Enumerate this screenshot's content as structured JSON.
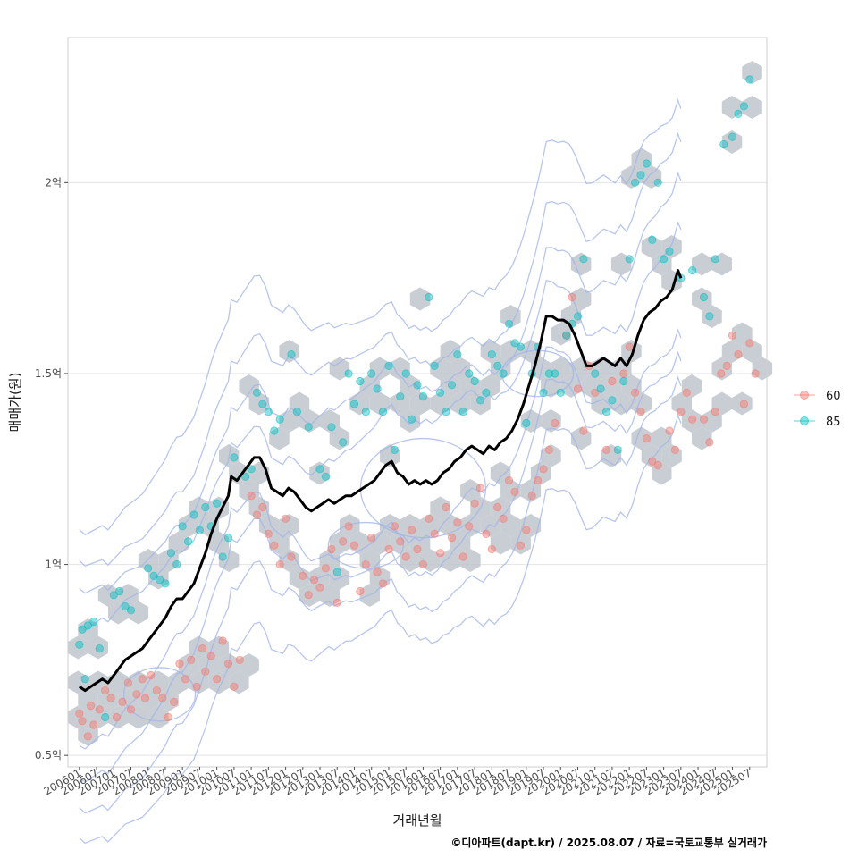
{
  "chart_data": {
    "type": "scatter",
    "title": "",
    "xlabel": "거래년월",
    "ylabel": "매매가(원)",
    "caption": "©디아파트(dapt.kr) / 2025.08.07 / 자료=국토교통부 실거래가",
    "x_ticks": [
      "200601",
      "200607",
      "200701",
      "200707",
      "200801",
      "200807",
      "200901",
      "200907",
      "201001",
      "201007",
      "201101",
      "201107",
      "201201",
      "201207",
      "201301",
      "201307",
      "201401",
      "201407",
      "201501",
      "201507",
      "201601",
      "201607",
      "201701",
      "201707",
      "201801",
      "201807",
      "201901",
      "201907",
      "202001",
      "202007",
      "202101",
      "202107",
      "202201",
      "202207",
      "202301",
      "202307",
      "202401",
      "202407",
      "202501",
      "202507"
    ],
    "x_range_months": [
      -4,
      240
    ],
    "y_range": [
      0.47,
      2.38
    ],
    "y_ticks": [
      {
        "value": 0.5,
        "label": "0.5억"
      },
      {
        "value": 1.0,
        "label": "1억"
      },
      {
        "value": 1.5,
        "label": "1.5억"
      },
      {
        "value": 2.0,
        "label": "2억"
      }
    ],
    "grid": true,
    "legend_position": "right",
    "series": [
      {
        "name": "60",
        "color": "#F8766D",
        "points": [
          [
            0,
            0.61
          ],
          [
            1,
            0.59
          ],
          [
            3,
            0.55
          ],
          [
            4,
            0.63
          ],
          [
            5,
            0.58
          ],
          [
            7,
            0.62
          ],
          [
            9,
            0.67
          ],
          [
            11,
            0.65
          ],
          [
            13,
            0.6
          ],
          [
            15,
            0.64
          ],
          [
            17,
            0.69
          ],
          [
            18,
            0.62
          ],
          [
            20,
            0.66
          ],
          [
            22,
            0.7
          ],
          [
            23,
            0.65
          ],
          [
            25,
            0.71
          ],
          [
            27,
            0.67
          ],
          [
            29,
            0.65
          ],
          [
            31,
            0.6
          ],
          [
            33,
            0.64
          ],
          [
            35,
            0.74
          ],
          [
            37,
            0.7
          ],
          [
            39,
            0.75
          ],
          [
            41,
            0.68
          ],
          [
            43,
            0.78
          ],
          [
            44,
            0.72
          ],
          [
            46,
            0.76
          ],
          [
            48,
            0.7
          ],
          [
            50,
            0.8
          ],
          [
            52,
            0.74
          ],
          [
            54,
            0.68
          ],
          [
            56,
            0.75
          ],
          [
            60,
            1.18
          ],
          [
            62,
            1.13
          ],
          [
            64,
            1.15
          ],
          [
            66,
            1.08
          ],
          [
            68,
            1.05
          ],
          [
            70,
            1.0
          ],
          [
            72,
            1.12
          ],
          [
            74,
            1.02
          ],
          [
            78,
            0.97
          ],
          [
            80,
            0.92
          ],
          [
            82,
            0.96
          ],
          [
            84,
            0.94
          ],
          [
            86,
            0.99
          ],
          [
            88,
            1.04
          ],
          [
            90,
            0.9
          ],
          [
            92,
            1.06
          ],
          [
            94,
            1.1
          ],
          [
            96,
            1.05
          ],
          [
            98,
            0.93
          ],
          [
            100,
            1.0
          ],
          [
            102,
            1.07
          ],
          [
            104,
            0.98
          ],
          [
            106,
            0.95
          ],
          [
            108,
            1.04
          ],
          [
            110,
            1.1
          ],
          [
            112,
            1.06
          ],
          [
            114,
            1.02
          ],
          [
            116,
            1.09
          ],
          [
            118,
            1.04
          ],
          [
            120,
            1.0
          ],
          [
            122,
            1.12
          ],
          [
            124,
            1.08
          ],
          [
            126,
            1.03
          ],
          [
            128,
            1.15
          ],
          [
            130,
            1.07
          ],
          [
            132,
            1.11
          ],
          [
            134,
            1.02
          ],
          [
            136,
            1.1
          ],
          [
            138,
            1.16
          ],
          [
            140,
            1.2
          ],
          [
            142,
            1.08
          ],
          [
            144,
            1.04
          ],
          [
            146,
            1.15
          ],
          [
            148,
            1.12
          ],
          [
            150,
            1.22
          ],
          [
            152,
            1.19
          ],
          [
            154,
            1.05
          ],
          [
            156,
            1.09
          ],
          [
            158,
            1.18
          ],
          [
            160,
            1.22
          ],
          [
            162,
            1.25
          ],
          [
            164,
            1.3
          ],
          [
            166,
            1.37
          ],
          [
            170,
            1.6
          ],
          [
            172,
            1.7
          ],
          [
            174,
            1.46
          ],
          [
            176,
            1.35
          ],
          [
            178,
            1.52
          ],
          [
            180,
            1.45
          ],
          [
            184,
            1.3
          ],
          [
            186,
            1.48
          ],
          [
            190,
            1.5
          ],
          [
            192,
            1.57
          ],
          [
            194,
            1.45
          ],
          [
            196,
            1.4
          ],
          [
            198,
            1.33
          ],
          [
            200,
            1.27
          ],
          [
            202,
            1.26
          ],
          [
            206,
            1.35
          ],
          [
            208,
            1.3
          ],
          [
            210,
            1.4
          ],
          [
            212,
            1.45
          ],
          [
            214,
            1.38
          ],
          [
            218,
            1.38
          ],
          [
            220,
            1.32
          ],
          [
            222,
            1.4
          ],
          [
            224,
            1.5
          ],
          [
            226,
            1.52
          ],
          [
            228,
            1.6
          ],
          [
            230,
            1.55
          ],
          [
            232,
            1.42
          ],
          [
            234,
            1.58
          ],
          [
            236,
            1.5
          ]
        ]
      },
      {
        "name": "85",
        "color": "#00BFC4",
        "points": [
          [
            0,
            0.79
          ],
          [
            1,
            0.83
          ],
          [
            2,
            0.7
          ],
          [
            3,
            0.84
          ],
          [
            5,
            0.85
          ],
          [
            7,
            0.78
          ],
          [
            9,
            0.6
          ],
          [
            12,
            0.92
          ],
          [
            14,
            0.93
          ],
          [
            16,
            0.89
          ],
          [
            18,
            0.88
          ],
          [
            24,
            0.99
          ],
          [
            26,
            0.97
          ],
          [
            28,
            0.96
          ],
          [
            30,
            0.95
          ],
          [
            32,
            1.03
          ],
          [
            34,
            1.0
          ],
          [
            36,
            1.1
          ],
          [
            38,
            1.06
          ],
          [
            40,
            1.13
          ],
          [
            42,
            1.09
          ],
          [
            44,
            1.15
          ],
          [
            46,
            1.1
          ],
          [
            48,
            1.16
          ],
          [
            50,
            1.02
          ],
          [
            52,
            1.07
          ],
          [
            54,
            1.28
          ],
          [
            58,
            1.23
          ],
          [
            60,
            1.25
          ],
          [
            62,
            1.45
          ],
          [
            64,
            1.42
          ],
          [
            66,
            1.4
          ],
          [
            68,
            1.35
          ],
          [
            70,
            1.38
          ],
          [
            74,
            1.55
          ],
          [
            76,
            1.4
          ],
          [
            80,
            1.36
          ],
          [
            84,
            1.25
          ],
          [
            86,
            1.23
          ],
          [
            88,
            1.36
          ],
          [
            90,
            0.98
          ],
          [
            92,
            1.32
          ],
          [
            94,
            1.5
          ],
          [
            96,
            1.42
          ],
          [
            98,
            1.48
          ],
          [
            100,
            1.4
          ],
          [
            102,
            1.5
          ],
          [
            104,
            1.46
          ],
          [
            106,
            1.4
          ],
          [
            108,
            1.52
          ],
          [
            110,
            1.3
          ],
          [
            112,
            1.44
          ],
          [
            114,
            1.5
          ],
          [
            116,
            1.38
          ],
          [
            118,
            1.47
          ],
          [
            120,
            1.44
          ],
          [
            122,
            1.7
          ],
          [
            124,
            1.52
          ],
          [
            126,
            1.45
          ],
          [
            128,
            1.4
          ],
          [
            130,
            1.47
          ],
          [
            132,
            1.55
          ],
          [
            134,
            1.4
          ],
          [
            136,
            1.5
          ],
          [
            138,
            1.48
          ],
          [
            140,
            1.43
          ],
          [
            142,
            1.45
          ],
          [
            144,
            1.55
          ],
          [
            146,
            1.52
          ],
          [
            148,
            1.5
          ],
          [
            150,
            1.63
          ],
          [
            152,
            1.58
          ],
          [
            154,
            1.57
          ],
          [
            156,
            1.37
          ],
          [
            158,
            1.5
          ],
          [
            160,
            1.57
          ],
          [
            162,
            1.45
          ],
          [
            164,
            1.5
          ],
          [
            166,
            1.5
          ],
          [
            168,
            1.45
          ],
          [
            170,
            1.6
          ],
          [
            172,
            1.63
          ],
          [
            174,
            1.65
          ],
          [
            176,
            1.8
          ],
          [
            180,
            1.5
          ],
          [
            182,
            1.46
          ],
          [
            184,
            1.4
          ],
          [
            186,
            1.43
          ],
          [
            188,
            1.3
          ],
          [
            190,
            1.48
          ],
          [
            192,
            1.8
          ],
          [
            194,
            2.0
          ],
          [
            196,
            2.02
          ],
          [
            198,
            2.05
          ],
          [
            200,
            1.85
          ],
          [
            202,
            2.0
          ],
          [
            204,
            1.8
          ],
          [
            206,
            1.82
          ],
          [
            210,
            1.75
          ],
          [
            214,
            1.77
          ],
          [
            218,
            1.7
          ],
          [
            220,
            1.65
          ],
          [
            222,
            1.8
          ],
          [
            225,
            2.1
          ],
          [
            228,
            2.12
          ],
          [
            230,
            2.18
          ],
          [
            232,
            2.2
          ],
          [
            234,
            2.27
          ]
        ]
      }
    ],
    "trend_line": {
      "color": "#000000",
      "points": [
        [
          0,
          0.68
        ],
        [
          2,
          0.67
        ],
        [
          4,
          0.68
        ],
        [
          6,
          0.69
        ],
        [
          8,
          0.7
        ],
        [
          10,
          0.69
        ],
        [
          12,
          0.71
        ],
        [
          14,
          0.73
        ],
        [
          16,
          0.75
        ],
        [
          18,
          0.76
        ],
        [
          20,
          0.77
        ],
        [
          22,
          0.78
        ],
        [
          24,
          0.8
        ],
        [
          26,
          0.82
        ],
        [
          28,
          0.84
        ],
        [
          30,
          0.86
        ],
        [
          32,
          0.89
        ],
        [
          34,
          0.91
        ],
        [
          36,
          0.91
        ],
        [
          38,
          0.93
        ],
        [
          40,
          0.95
        ],
        [
          42,
          0.99
        ],
        [
          44,
          1.03
        ],
        [
          46,
          1.08
        ],
        [
          48,
          1.12
        ],
        [
          50,
          1.15
        ],
        [
          52,
          1.18
        ],
        [
          53,
          1.23
        ],
        [
          55,
          1.22
        ],
        [
          57,
          1.24
        ],
        [
          59,
          1.26
        ],
        [
          61,
          1.28
        ],
        [
          63,
          1.28
        ],
        [
          65,
          1.25
        ],
        [
          67,
          1.2
        ],
        [
          69,
          1.19
        ],
        [
          71,
          1.18
        ],
        [
          73,
          1.2
        ],
        [
          75,
          1.19
        ],
        [
          77,
          1.17
        ],
        [
          79,
          1.15
        ],
        [
          81,
          1.14
        ],
        [
          83,
          1.15
        ],
        [
          85,
          1.16
        ],
        [
          87,
          1.17
        ],
        [
          89,
          1.16
        ],
        [
          91,
          1.17
        ],
        [
          93,
          1.18
        ],
        [
          95,
          1.18
        ],
        [
          97,
          1.19
        ],
        [
          99,
          1.2
        ],
        [
          101,
          1.21
        ],
        [
          103,
          1.22
        ],
        [
          105,
          1.24
        ],
        [
          107,
          1.26
        ],
        [
          109,
          1.27
        ],
        [
          111,
          1.24
        ],
        [
          113,
          1.23
        ],
        [
          115,
          1.21
        ],
        [
          117,
          1.22
        ],
        [
          119,
          1.21
        ],
        [
          121,
          1.22
        ],
        [
          123,
          1.21
        ],
        [
          125,
          1.22
        ],
        [
          127,
          1.24
        ],
        [
          129,
          1.25
        ],
        [
          131,
          1.27
        ],
        [
          133,
          1.28
        ],
        [
          135,
          1.3
        ],
        [
          137,
          1.31
        ],
        [
          139,
          1.3
        ],
        [
          141,
          1.29
        ],
        [
          143,
          1.31
        ],
        [
          145,
          1.3
        ],
        [
          147,
          1.32
        ],
        [
          149,
          1.33
        ],
        [
          151,
          1.35
        ],
        [
          153,
          1.38
        ],
        [
          155,
          1.42
        ],
        [
          157,
          1.47
        ],
        [
          159,
          1.52
        ],
        [
          161,
          1.58
        ],
        [
          163,
          1.65
        ],
        [
          165,
          1.65
        ],
        [
          167,
          1.64
        ],
        [
          169,
          1.64
        ],
        [
          171,
          1.63
        ],
        [
          173,
          1.6
        ],
        [
          175,
          1.56
        ],
        [
          177,
          1.52
        ],
        [
          179,
          1.52
        ],
        [
          181,
          1.53
        ],
        [
          183,
          1.54
        ],
        [
          185,
          1.53
        ],
        [
          187,
          1.52
        ],
        [
          189,
          1.54
        ],
        [
          191,
          1.52
        ],
        [
          193,
          1.55
        ],
        [
          195,
          1.6
        ],
        [
          197,
          1.64
        ],
        [
          199,
          1.66
        ],
        [
          201,
          1.67
        ],
        [
          203,
          1.69
        ],
        [
          205,
          1.7
        ],
        [
          207,
          1.72
        ],
        [
          209,
          1.77
        ],
        [
          210,
          1.75
        ]
      ]
    }
  }
}
